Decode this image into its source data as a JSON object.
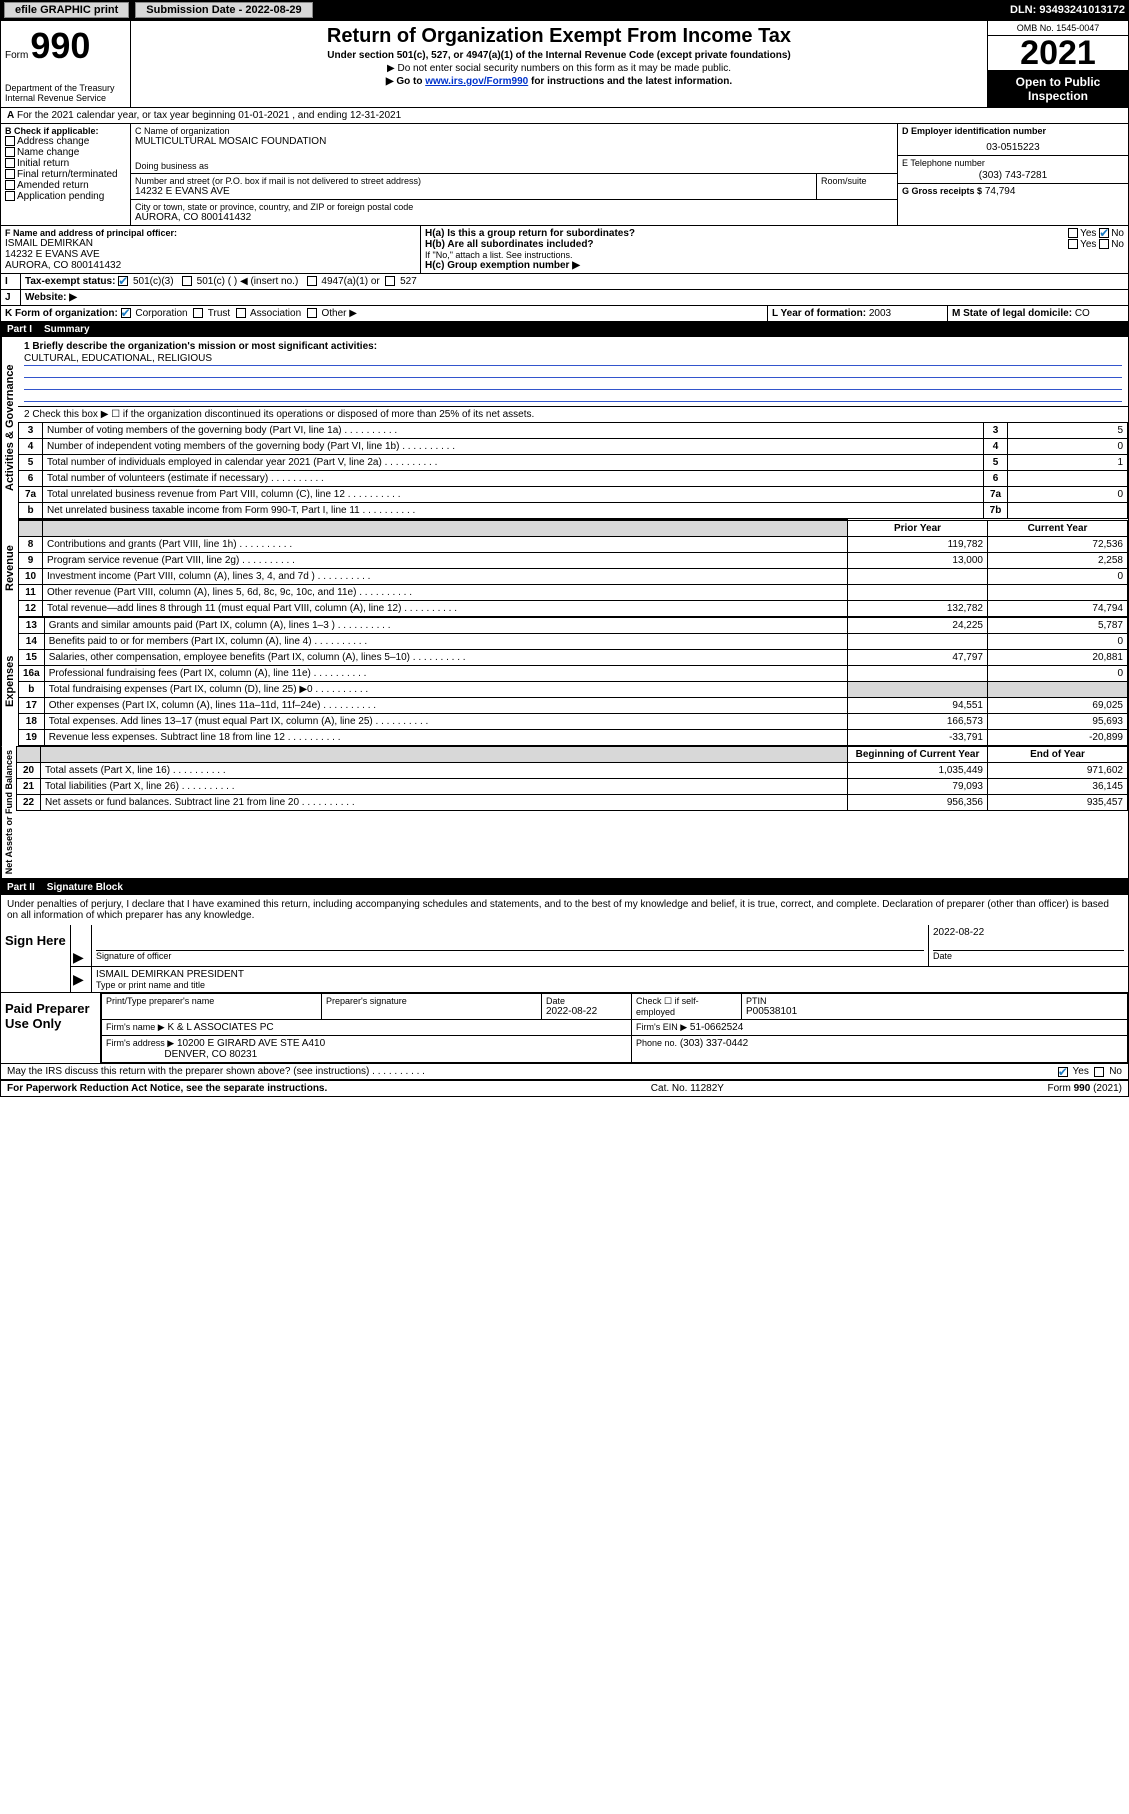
{
  "topbar": {
    "efile": "efile GRAPHIC print",
    "submission_label": "Submission Date",
    "submission_date": "2022-08-29",
    "dln_label": "DLN:",
    "dln": "93493241013172"
  },
  "header": {
    "form_word": "Form",
    "form_number": "990",
    "dept": "Department of the Treasury",
    "irs": "Internal Revenue Service",
    "title": "Return of Organization Exempt From Income Tax",
    "subtitle": "Under section 501(c), 527, or 4947(a)(1) of the Internal Revenue Code (except private foundations)",
    "note1": "▶ Do not enter social security numbers on this form as it may be made public.",
    "note2_prefix": "▶ Go to ",
    "note2_link": "www.irs.gov/Form990",
    "note2_suffix": " for instructions and the latest information.",
    "omb": "OMB No. 1545-0047",
    "year": "2021",
    "open": "Open to Public Inspection"
  },
  "lineA": {
    "text": "For the 2021 calendar year, or tax year beginning 01-01-2021   , and ending 12-31-2021"
  },
  "blockB": {
    "label": "B Check if applicable:",
    "items": [
      "Address change",
      "Name change",
      "Initial return",
      "Final return/terminated",
      "Amended return",
      "Application pending"
    ]
  },
  "blockC": {
    "name_label": "C Name of organization",
    "name": "MULTICULTURAL MOSAIC FOUNDATION",
    "dba_label": "Doing business as",
    "dba": "",
    "addr_label": "Number and street (or P.O. box if mail is not delivered to street address)",
    "room_label": "Room/suite",
    "addr": "14232 E EVANS AVE",
    "city_label": "City or town, state or province, country, and ZIP or foreign postal code",
    "city": "AURORA, CO  800141432"
  },
  "blockD": {
    "label": "D Employer identification number",
    "value": "03-0515223"
  },
  "blockE": {
    "label": "E Telephone number",
    "value": "(303) 743-7281"
  },
  "blockG": {
    "label": "G Gross receipts $",
    "value": "74,794"
  },
  "blockF": {
    "label": "F Name and address of principal officer:",
    "name": "ISMAIL DEMIRKAN",
    "addr1": "14232 E EVANS AVE",
    "addr2": "AURORA, CO  800141432"
  },
  "blockH": {
    "a": "H(a)  Is this a group return for subordinates?",
    "b": "H(b)  Are all subordinates included?",
    "b_note": "If \"No,\" attach a list. See instructions.",
    "c": "H(c)  Group exemption number ▶",
    "yes": "Yes",
    "no": "No"
  },
  "blockI": {
    "label": "Tax-exempt status:",
    "opts": [
      "501(c)(3)",
      "501(c) (  ) ◀ (insert no.)",
      "4947(a)(1) or",
      "527"
    ]
  },
  "blockJ": {
    "label": "Website: ▶",
    "value": ""
  },
  "blockK": {
    "label": "K Form of organization:",
    "opts": [
      "Corporation",
      "Trust",
      "Association",
      "Other ▶"
    ]
  },
  "blockL": {
    "label": "L Year of formation:",
    "value": "2003"
  },
  "blockM": {
    "label": "M State of legal domicile:",
    "value": "CO"
  },
  "part1": {
    "num": "Part I",
    "title": "Summary"
  },
  "summary": {
    "q1_label": "1  Briefly describe the organization's mission or most significant activities:",
    "q1_value": "CULTURAL, EDUCATIONAL, RELIGIOUS",
    "q2": "2  Check this box ▶ ☐  if the organization discontinued its operations or disposed of more than 25% of its net assets.",
    "lines_gov": [
      {
        "n": "3",
        "desc": "Number of voting members of the governing body (Part VI, line 1a)",
        "rn": "3",
        "val": "5"
      },
      {
        "n": "4",
        "desc": "Number of independent voting members of the governing body (Part VI, line 1b)",
        "rn": "4",
        "val": "0"
      },
      {
        "n": "5",
        "desc": "Total number of individuals employed in calendar year 2021 (Part V, line 2a)",
        "rn": "5",
        "val": "1"
      },
      {
        "n": "6",
        "desc": "Total number of volunteers (estimate if necessary)",
        "rn": "6",
        "val": ""
      },
      {
        "n": "7a",
        "desc": "Total unrelated business revenue from Part VIII, column (C), line 12",
        "rn": "7a",
        "val": "0"
      },
      {
        "n": "b",
        "desc": "Net unrelated business taxable income from Form 990-T, Part I, line 11",
        "rn": "7b",
        "val": ""
      }
    ],
    "col_prior": "Prior Year",
    "col_current": "Current Year",
    "col_begin": "Beginning of Current Year",
    "col_end": "End of Year",
    "revenue": [
      {
        "n": "8",
        "desc": "Contributions and grants (Part VIII, line 1h)",
        "p": "119,782",
        "c": "72,536"
      },
      {
        "n": "9",
        "desc": "Program service revenue (Part VIII, line 2g)",
        "p": "13,000",
        "c": "2,258"
      },
      {
        "n": "10",
        "desc": "Investment income (Part VIII, column (A), lines 3, 4, and 7d )",
        "p": "",
        "c": "0"
      },
      {
        "n": "11",
        "desc": "Other revenue (Part VIII, column (A), lines 5, 6d, 8c, 9c, 10c, and 11e)",
        "p": "",
        "c": ""
      },
      {
        "n": "12",
        "desc": "Total revenue—add lines 8 through 11 (must equal Part VIII, column (A), line 12)",
        "p": "132,782",
        "c": "74,794"
      }
    ],
    "expenses": [
      {
        "n": "13",
        "desc": "Grants and similar amounts paid (Part IX, column (A), lines 1–3 )",
        "p": "24,225",
        "c": "5,787"
      },
      {
        "n": "14",
        "desc": "Benefits paid to or for members (Part IX, column (A), line 4)",
        "p": "",
        "c": "0"
      },
      {
        "n": "15",
        "desc": "Salaries, other compensation, employee benefits (Part IX, column (A), lines 5–10)",
        "p": "47,797",
        "c": "20,881"
      },
      {
        "n": "16a",
        "desc": "Professional fundraising fees (Part IX, column (A), line 11e)",
        "p": "",
        "c": "0"
      },
      {
        "n": "b",
        "desc": "Total fundraising expenses (Part IX, column (D), line 25) ▶0",
        "p": "SHADE",
        "c": "SHADE"
      },
      {
        "n": "17",
        "desc": "Other expenses (Part IX, column (A), lines 11a–11d, 11f–24e)",
        "p": "94,551",
        "c": "69,025"
      },
      {
        "n": "18",
        "desc": "Total expenses. Add lines 13–17 (must equal Part IX, column (A), line 25)",
        "p": "166,573",
        "c": "95,693"
      },
      {
        "n": "19",
        "desc": "Revenue less expenses. Subtract line 18 from line 12",
        "p": "-33,791",
        "c": "-20,899"
      }
    ],
    "netassets": [
      {
        "n": "20",
        "desc": "Total assets (Part X, line 16)",
        "p": "1,035,449",
        "c": "971,602"
      },
      {
        "n": "21",
        "desc": "Total liabilities (Part X, line 26)",
        "p": "79,093",
        "c": "36,145"
      },
      {
        "n": "22",
        "desc": "Net assets or fund balances. Subtract line 21 from line 20",
        "p": "956,356",
        "c": "935,457"
      }
    ],
    "side_gov": "Activities & Governance",
    "side_rev": "Revenue",
    "side_exp": "Expenses",
    "side_net": "Net Assets or Fund Balances"
  },
  "part2": {
    "num": "Part II",
    "title": "Signature Block"
  },
  "sig": {
    "jurat": "Under penalties of perjury, I declare that I have examined this return, including accompanying schedules and statements, and to the best of my knowledge and belief, it is true, correct, and complete. Declaration of preparer (other than officer) is based on all information of which preparer has any knowledge.",
    "sign_here": "Sign Here",
    "sig_officer": "Signature of officer",
    "date_label": "Date",
    "date": "2022-08-22",
    "name_title": "ISMAIL DEMIRKAN  PRESIDENT",
    "name_title_label": "Type or print name and title",
    "paid": "Paid Preparer Use Only",
    "prep_name_label": "Print/Type preparer's name",
    "prep_sig_label": "Preparer's signature",
    "prep_date_label": "Date",
    "prep_date": "2022-08-22",
    "check_if": "Check ☐ if self-employed",
    "ptin_label": "PTIN",
    "ptin": "P00538101",
    "firm_name_label": "Firm's name    ▶",
    "firm_name": "K & L ASSOCIATES PC",
    "firm_ein_label": "Firm's EIN ▶",
    "firm_ein": "51-0662524",
    "firm_addr_label": "Firm's address ▶",
    "firm_addr1": "10200 E GIRARD AVE STE A410",
    "firm_addr2": "DENVER, CO  80231",
    "phone_label": "Phone no.",
    "phone": "(303) 337-0442",
    "discuss": "May the IRS discuss this return with the preparer shown above? (see instructions)",
    "yes": "Yes",
    "no": "No"
  },
  "footer": {
    "left": "For Paperwork Reduction Act Notice, see the separate instructions.",
    "mid": "Cat. No. 11282Y",
    "right": "Form 990 (2021)"
  }
}
